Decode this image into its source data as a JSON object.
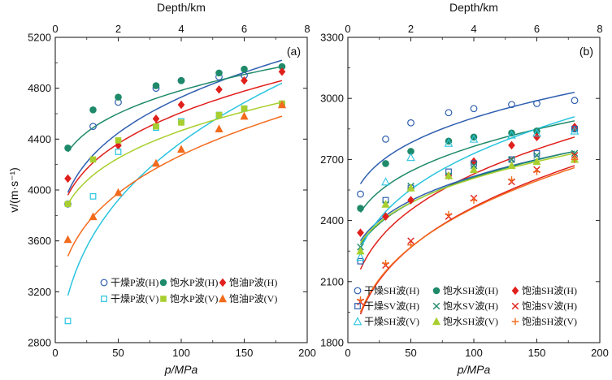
{
  "chart_data": [
    {
      "type": "scatter",
      "panel_label": "(a)",
      "xlabel": "p/MPa",
      "x2label": "Depth/km",
      "ylabel": "v/(m·s⁻¹)",
      "xlim": [
        0,
        200
      ],
      "ylim": [
        2800,
        5200
      ],
      "x2lim": [
        0,
        8
      ],
      "xticks": [
        "0",
        "50",
        "100",
        "150",
        "200"
      ],
      "x2ticks": [
        "0",
        "2",
        "4",
        "6",
        "8"
      ],
      "yticks": [
        "2800",
        "3200",
        "3600",
        "4000",
        "4400",
        "4800",
        "5200"
      ],
      "series": [
        {
          "name": "干燥P波(H)",
          "color": "#2f5fb0",
          "marker": "circle-open",
          "x": [
            10,
            30,
            50,
            80,
            100,
            130,
            150
          ],
          "y": [
            3890,
            4500,
            4690,
            4800,
            4860,
            4890,
            4900
          ],
          "fit": [
            3980,
            5020
          ]
        },
        {
          "name": "饱水P波(H)",
          "color": "#1f8a6a",
          "marker": "circle-filled",
          "x": [
            10,
            30,
            50,
            80,
            100,
            130,
            150,
            180
          ],
          "y": [
            4330,
            4630,
            4730,
            4820,
            4860,
            4920,
            4950,
            4970
          ],
          "fit": [
            4300,
            4970
          ]
        },
        {
          "name": "饱油P波(H)",
          "color": "#e0201c",
          "marker": "diamond",
          "x": [
            10,
            50,
            80,
            100,
            130,
            150,
            180
          ],
          "y": [
            4090,
            4350,
            4560,
            4670,
            4790,
            4860,
            4930
          ],
          "fit": [
            3960,
            4860
          ]
        },
        {
          "name": "干燥P波(V)",
          "color": "#29c4e0",
          "marker": "square-open",
          "x": [
            10,
            30,
            50,
            80,
            100,
            130,
            150,
            180
          ],
          "y": [
            2970,
            3950,
            4300,
            4490,
            4540,
            4590,
            4640,
            4670
          ],
          "fit": [
            3170,
            4840
          ]
        },
        {
          "name": "饱水P波(V)",
          "color": "#a9cf2f",
          "marker": "square-filled",
          "x": [
            10,
            30,
            50,
            80,
            100,
            130,
            150,
            180
          ],
          "y": [
            3890,
            4240,
            4390,
            4500,
            4530,
            4590,
            4640,
            4680
          ],
          "fit": [
            3890,
            4690
          ]
        },
        {
          "name": "饱油P波(V)",
          "color": "#f26b1d",
          "marker": "triangle",
          "x": [
            10,
            30,
            50,
            80,
            100,
            130,
            150,
            180
          ],
          "y": [
            3610,
            3790,
            3980,
            4210,
            4320,
            4480,
            4580,
            4670
          ],
          "fit": [
            3480,
            4580
          ]
        }
      ]
    },
    {
      "type": "scatter",
      "panel_label": "(b)",
      "xlabel": "p/MPa",
      "x2label": "Depth/km",
      "xlim": [
        0,
        200
      ],
      "ylim": [
        1800,
        3300
      ],
      "x2lim": [
        0,
        8
      ],
      "xticks": [
        "0",
        "50",
        "100",
        "150",
        "200"
      ],
      "x2ticks": [
        "0",
        "2",
        "4",
        "6",
        "8"
      ],
      "yticks": [
        "1800",
        "2100",
        "2400",
        "2700",
        "3000",
        "3300"
      ],
      "series": [
        {
          "name": "干燥SH波(H)",
          "color": "#2f5fb0",
          "marker": "circle-open",
          "x": [
            10,
            30,
            50,
            80,
            100,
            130,
            150,
            180
          ],
          "y": [
            2530,
            2800,
            2880,
            2930,
            2950,
            2970,
            2975,
            2990
          ],
          "fit": [
            2580,
            3030
          ]
        },
        {
          "name": "饱水SH波(H)",
          "color": "#1f8a6a",
          "marker": "circle-filled",
          "x": [
            10,
            30,
            50,
            80,
            100,
            130,
            150,
            180
          ],
          "y": [
            2460,
            2680,
            2740,
            2790,
            2810,
            2830,
            2840,
            2850
          ],
          "fit": [
            2440,
            2890
          ]
        },
        {
          "name": "饱油SH波(H)",
          "color": "#e0201c",
          "marker": "diamond",
          "x": [
            10,
            30,
            50,
            80,
            100,
            130,
            150,
            180
          ],
          "y": [
            2340,
            2420,
            2500,
            2620,
            2690,
            2770,
            2810,
            2860
          ],
          "fit": [
            2160,
            2810
          ]
        },
        {
          "name": "干燥SV波(H)",
          "color": "#2f5fb0",
          "marker": "square-open",
          "x": [
            10,
            30,
            50,
            80,
            100,
            130,
            150,
            180
          ],
          "y": [
            2200,
            2500,
            2560,
            2640,
            2680,
            2700,
            2730,
            2850
          ],
          "fit": [
            2300,
            2740
          ]
        },
        {
          "name": "饱水SV波(H)",
          "color": "#1f8a6a",
          "marker": "x",
          "x": [
            10,
            30,
            50,
            80,
            100,
            130,
            150,
            180
          ],
          "y": [
            2270,
            2480,
            2570,
            2620,
            2670,
            2700,
            2720,
            2730
          ],
          "fit": [
            2280,
            2740
          ]
        },
        {
          "name": "饱油SV波(H)",
          "color": "#e0201c",
          "marker": "x",
          "x": [
            10,
            30,
            50,
            80,
            100,
            130,
            150,
            180
          ],
          "y": [
            2000,
            2180,
            2300,
            2420,
            2510,
            2590,
            2650,
            2720
          ],
          "fit": [
            1940,
            2670
          ]
        },
        {
          "name": "干燥SH波(V)",
          "color": "#29c4e0",
          "marker": "triangle-open",
          "x": [
            10,
            30,
            50,
            80,
            100,
            130,
            150,
            180
          ],
          "y": [
            2220,
            2590,
            2710,
            2780,
            2800,
            2820,
            2830,
            2840
          ],
          "fit": [
            2260,
            2910
          ]
        },
        {
          "name": "饱水SH波(V)",
          "color": "#a9cf2f",
          "marker": "triangle",
          "x": [
            10,
            30,
            50,
            80,
            100,
            130,
            150,
            180
          ],
          "y": [
            2250,
            2480,
            2560,
            2620,
            2650,
            2670,
            2690,
            2700
          ],
          "fit": [
            2290,
            2730
          ]
        },
        {
          "name": "饱油SH波(V)",
          "color": "#f26b1d",
          "marker": "plus",
          "x": [
            10,
            30,
            50,
            80,
            100,
            130,
            150,
            180
          ],
          "y": [
            2010,
            2190,
            2280,
            2430,
            2500,
            2600,
            2640,
            2700
          ],
          "fit": [
            1950,
            2660
          ]
        }
      ]
    }
  ]
}
